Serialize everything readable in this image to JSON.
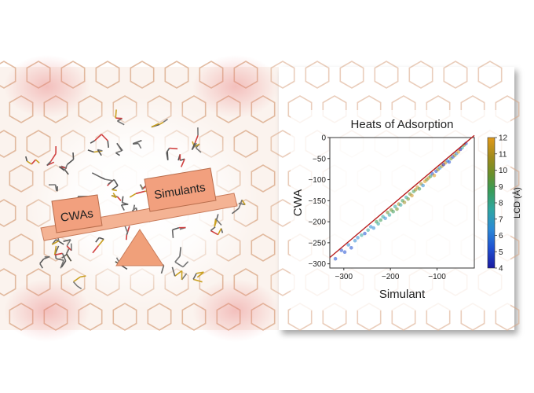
{
  "illustration": {
    "left_box_label": "CWAs",
    "right_box_label": "Simulants",
    "box_color": "#f2a07e",
    "beam_color": "#f4b394",
    "fulcrum_color": "#f0a07a",
    "framework_color": "#d9a684",
    "glow_color": "#e98080"
  },
  "chart_data": {
    "type": "scatter",
    "title": "Heats of Adsorption",
    "xlabel": "Simulant",
    "ylabel": "CWA",
    "xlim": [
      -330,
      -20
    ],
    "ylim": [
      -310,
      0
    ],
    "xticks": [
      -300,
      -200,
      -100
    ],
    "yticks": [
      0,
      -50,
      -100,
      -150,
      -200,
      -250,
      -300
    ],
    "fit_line": {
      "x": [
        -330,
        -20
      ],
      "y": [
        -285,
        5
      ],
      "color": "#b81f1f"
    },
    "colorbar": {
      "label": "LCD (Å)",
      "ticks": [
        12,
        11,
        10,
        9,
        8,
        7,
        6,
        5,
        4
      ],
      "range": [
        4,
        12
      ],
      "colormap": [
        "#1a1aa0",
        "#1f4fd1",
        "#2b8ad6",
        "#2fa6a0",
        "#3a9b55",
        "#6a8f2a",
        "#a08a1c",
        "#c98c18",
        "#e09a1a"
      ]
    },
    "series": [
      {
        "x": [
          -318,
          -305,
          -298,
          -290,
          -284,
          -276,
          -270,
          -262,
          -255,
          -248,
          -242,
          -236,
          -230,
          -226,
          -221,
          -216,
          -211,
          -206,
          -202,
          -198,
          -194,
          -190,
          -186,
          -182,
          -178,
          -174,
          -170,
          -166,
          -162,
          -158,
          -154,
          -150,
          -146,
          -142,
          -138,
          -134,
          -130,
          -126,
          -122,
          -118,
          -114,
          -110,
          -106,
          -102,
          -98,
          -94,
          -90,
          -86,
          -82,
          -78,
          -74,
          -70,
          -66,
          -62,
          -58,
          -54,
          -50,
          -46,
          -42,
          -38
        ],
        "y": [
          -288,
          -268,
          -272,
          -255,
          -262,
          -245,
          -238,
          -232,
          -228,
          -220,
          -212,
          -215,
          -200,
          -205,
          -196,
          -188,
          -192,
          -178,
          -184,
          -172,
          -176,
          -164,
          -170,
          -158,
          -160,
          -150,
          -154,
          -142,
          -146,
          -134,
          -138,
          -128,
          -124,
          -118,
          -122,
          -110,
          -114,
          -104,
          -100,
          -96,
          -92,
          -86,
          -90,
          -80,
          -76,
          -72,
          -68,
          -64,
          -60,
          -55,
          -58,
          -50,
          -46,
          -42,
          -38,
          -34,
          -28,
          -24,
          -18,
          -14
        ],
        "lcd": [
          4.5,
          5,
          4.8,
          5.5,
          5.2,
          6,
          5.8,
          6.5,
          5,
          7,
          6.2,
          5.5,
          7.5,
          6.8,
          8,
          7.2,
          6,
          8.5,
          7,
          9,
          7.8,
          6.5,
          8.8,
          9.5,
          7.4,
          8.2,
          10,
          6.8,
          9.2,
          8.6,
          10.5,
          7.6,
          9.8,
          11,
          8.4,
          10.2,
          6.2,
          11.5,
          9,
          10.8,
          7.8,
          5.2,
          11.8,
          4.6,
          9.6,
          5.8,
          10.4,
          4.4,
          11.2,
          6.4,
          5,
          8.8,
          4.8,
          10,
          5.6,
          12,
          4.2,
          7.2,
          9.4,
          5
        ]
      }
    ]
  }
}
